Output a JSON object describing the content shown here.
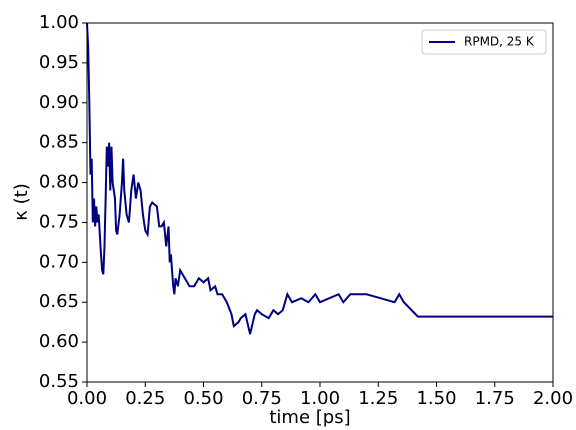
{
  "chart_data": {
    "type": "line",
    "x_label": "time [ps]",
    "y_label": "κ (t)",
    "x": [
      0,
      0.005,
      0.01,
      0.015,
      0.02,
      0.025,
      0.03,
      0.035,
      0.04,
      0.045,
      0.05,
      0.06,
      0.065,
      0.07,
      0.075,
      0.08,
      0.085,
      0.09,
      0.095,
      0.1,
      0.105,
      0.11,
      0.12,
      0.125,
      0.13,
      0.14,
      0.145,
      0.15,
      0.155,
      0.16,
      0.17,
      0.18,
      0.19,
      0.2,
      0.21,
      0.22,
      0.23,
      0.24,
      0.25,
      0.26,
      0.27,
      0.28,
      0.3,
      0.31,
      0.32,
      0.33,
      0.34,
      0.35,
      0.355,
      0.36,
      0.37,
      0.375,
      0.38,
      0.39,
      0.4,
      0.42,
      0.44,
      0.46,
      0.48,
      0.5,
      0.52,
      0.53,
      0.55,
      0.56,
      0.58,
      0.6,
      0.62,
      0.63,
      0.65,
      0.66,
      0.68,
      0.7,
      0.72,
      0.73,
      0.75,
      0.78,
      0.8,
      0.82,
      0.84,
      0.86,
      0.88,
      0.92,
      0.95,
      0.98,
      1.0,
      1.08,
      1.1,
      1.13,
      1.2,
      1.32,
      1.34,
      1.36,
      1.42,
      1.62,
      2.0
    ],
    "series": [
      {
        "name": "RPMD, 25 K",
        "color": "#000080",
        "values": [
          1.0,
          0.97,
          0.9,
          0.81,
          0.83,
          0.75,
          0.78,
          0.745,
          0.77,
          0.75,
          0.76,
          0.71,
          0.69,
          0.685,
          0.72,
          0.78,
          0.845,
          0.82,
          0.85,
          0.79,
          0.845,
          0.8,
          0.78,
          0.74,
          0.735,
          0.76,
          0.78,
          0.8,
          0.83,
          0.79,
          0.76,
          0.75,
          0.79,
          0.81,
          0.78,
          0.8,
          0.79,
          0.76,
          0.74,
          0.735,
          0.77,
          0.775,
          0.77,
          0.745,
          0.745,
          0.75,
          0.72,
          0.745,
          0.7,
          0.71,
          0.67,
          0.66,
          0.68,
          0.67,
          0.69,
          0.68,
          0.67,
          0.67,
          0.68,
          0.675,
          0.68,
          0.665,
          0.67,
          0.66,
          0.66,
          0.65,
          0.635,
          0.62,
          0.625,
          0.63,
          0.635,
          0.61,
          0.635,
          0.64,
          0.635,
          0.63,
          0.64,
          0.635,
          0.64,
          0.66,
          0.65,
          0.655,
          0.65,
          0.66,
          0.65,
          0.66,
          0.65,
          0.66,
          0.66,
          0.65,
          0.66,
          0.65,
          0.632,
          0.632,
          0.632
        ]
      }
    ],
    "xlim": [
      0,
      2.0
    ],
    "ylim": [
      0.55,
      1.0
    ],
    "xticks": [
      {
        "value": 0,
        "label": "0.00"
      },
      0.25,
      {
        "value": 0.5,
        "label": "0.50"
      },
      0.75,
      {
        "value": 1.0,
        "label": "1.00"
      },
      1.25,
      {
        "value": 1.5,
        "label": "1.50"
      },
      1.75,
      {
        "value": 2.0,
        "label": "2.00"
      }
    ],
    "yticks": [
      0.55,
      {
        "value": 0.6,
        "label": "0.60"
      },
      0.65,
      {
        "value": 0.7,
        "label": "0.70"
      },
      0.75,
      {
        "value": 0.8,
        "label": "0.80"
      },
      0.85,
      {
        "value": 0.9,
        "label": "0.90"
      },
      0.95,
      {
        "value": 1.0,
        "label": "1.00"
      }
    ],
    "legend": "upper right"
  }
}
